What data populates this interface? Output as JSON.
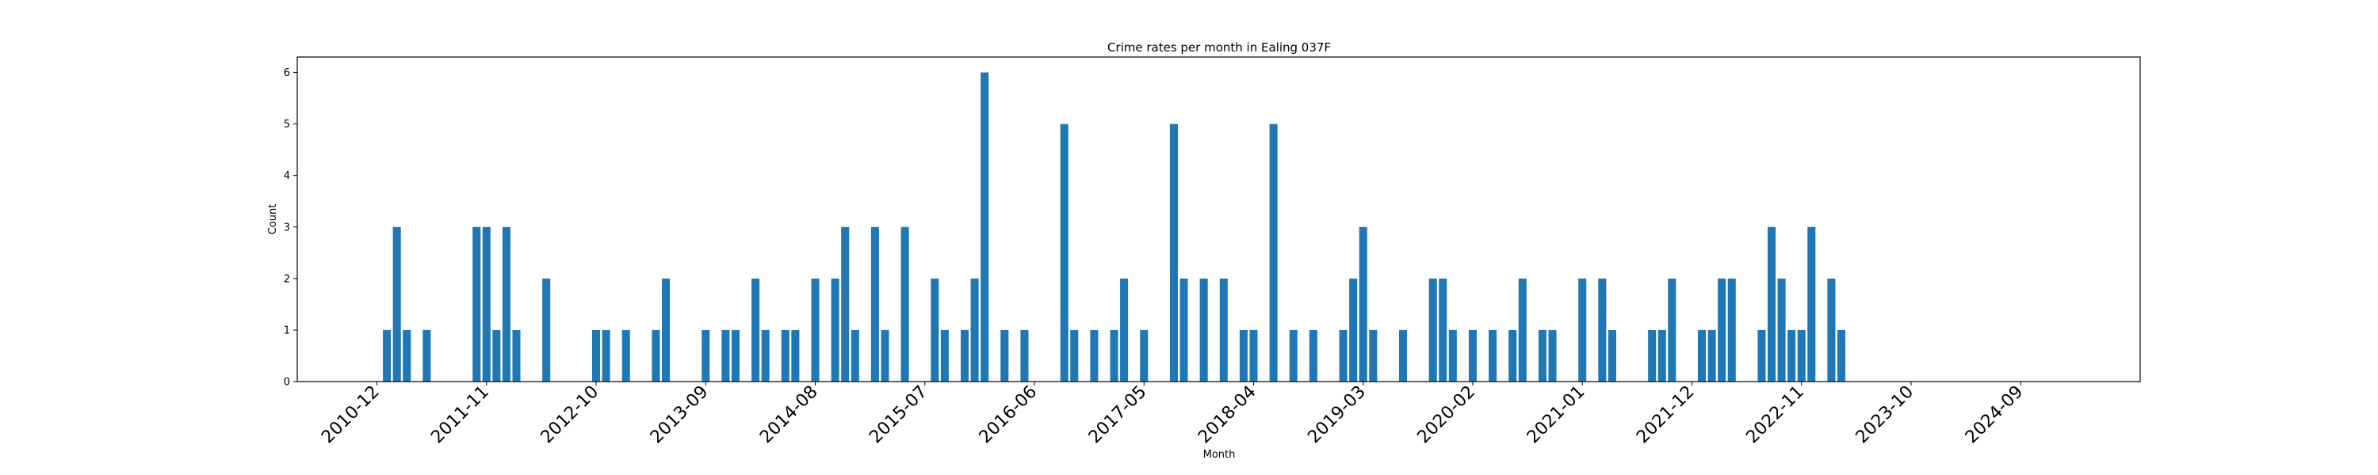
{
  "chart_data": {
    "type": "bar",
    "title": "Crime rates per month in Ealing 037F",
    "xlabel": "Month",
    "ylabel": "Count",
    "ylim": [
      0,
      6.3
    ],
    "yticks": [
      0,
      1,
      2,
      3,
      4,
      5,
      6
    ],
    "x_axis": "monthly index, 0 = 2010-12",
    "xlim_months": [
      -8,
      177
    ],
    "x_tick_labels": [
      "2010-12",
      "2011-11",
      "2012-10",
      "2013-09",
      "2014-08",
      "2015-07",
      "2016-06",
      "2017-05",
      "2018-04",
      "2019-03",
      "2020-02",
      "2021-01",
      "2021-12",
      "2022-11",
      "2023-10",
      "2024-09"
    ],
    "color": "#1f77b4",
    "grid": false,
    "categories": [
      "2011-01",
      "2011-02",
      "2011-03",
      "2011-05",
      "2011-10",
      "2011-11",
      "2011-12",
      "2012-01",
      "2012-02",
      "2012-05",
      "2012-10",
      "2012-11",
      "2013-01",
      "2013-04",
      "2013-05",
      "2013-09",
      "2013-11",
      "2013-12",
      "2014-02",
      "2014-03",
      "2014-05",
      "2014-06",
      "2014-08",
      "2014-10",
      "2014-11",
      "2014-12",
      "2015-02",
      "2015-03",
      "2015-05",
      "2015-08",
      "2015-09",
      "2015-11",
      "2015-12",
      "2016-01",
      "2016-03",
      "2016-05",
      "2016-09",
      "2016-10",
      "2016-12",
      "2017-02",
      "2017-03",
      "2017-05",
      "2017-08",
      "2017-09",
      "2017-11",
      "2018-01",
      "2018-03",
      "2018-04",
      "2018-06",
      "2018-08",
      "2018-10",
      "2019-01",
      "2019-02",
      "2019-03",
      "2019-04",
      "2019-07",
      "2019-10",
      "2019-11",
      "2019-12",
      "2020-02",
      "2020-04",
      "2020-06",
      "2020-07",
      "2020-09",
      "2020-10",
      "2021-01",
      "2021-03",
      "2021-04",
      "2021-08",
      "2021-09",
      "2021-10",
      "2022-01",
      "2022-02",
      "2022-03",
      "2022-04",
      "2022-07",
      "2022-08",
      "2022-09",
      "2022-10",
      "2022-11",
      "2022-12",
      "2023-02",
      "2023-03"
    ],
    "values": [
      1,
      3,
      1,
      1,
      3,
      3,
      1,
      3,
      1,
      2,
      1,
      1,
      1,
      1,
      2,
      1,
      1,
      1,
      2,
      1,
      1,
      1,
      2,
      2,
      3,
      1,
      3,
      1,
      3,
      2,
      1,
      1,
      2,
      6,
      1,
      1,
      5,
      1,
      1,
      1,
      2,
      1,
      5,
      2,
      2,
      2,
      1,
      1,
      5,
      1,
      1,
      1,
      2,
      3,
      1,
      1,
      2,
      2,
      1,
      1,
      1,
      1,
      2,
      1,
      1,
      2,
      2,
      1,
      1,
      1,
      2,
      1,
      1,
      2,
      2,
      1,
      3,
      2,
      1,
      1,
      3,
      2,
      1
    ]
  }
}
